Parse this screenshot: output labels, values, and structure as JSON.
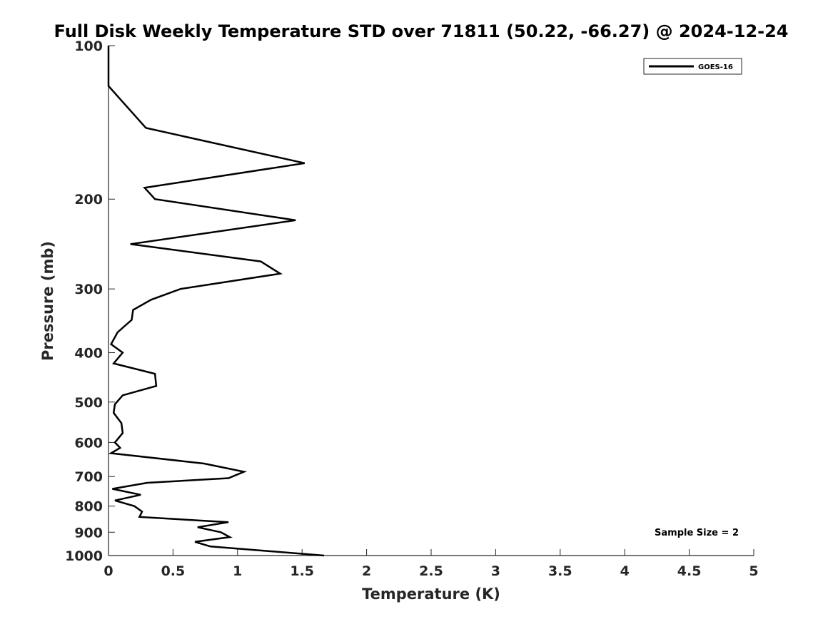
{
  "chart_data": {
    "type": "line",
    "title": "Full Disk Weekly Temperature STD over 71811 (50.22, -66.27) @ 2024-12-24",
    "xlabel": "Temperature (K)",
    "ylabel": "Pressure (mb)",
    "xlim": [
      0,
      5
    ],
    "ylim": [
      100,
      1000
    ],
    "yscale": "log",
    "yreversed": true,
    "xticks": [
      "0",
      "0.5",
      "1",
      "1.5",
      "2",
      "2.5",
      "3",
      "3.5",
      "4",
      "4.5",
      "5"
    ],
    "yticks": [
      "100",
      "200",
      "300",
      "400",
      "500",
      "600",
      "700",
      "800",
      "900",
      "1000"
    ],
    "grid": false,
    "legend_position": "top-right",
    "annotation": "Sample Size = 2",
    "series": [
      {
        "name": "GOES-16",
        "color": "#000000",
        "x": [
          0.0,
          0.0,
          0.29,
          1.52,
          0.28,
          0.36,
          1.45,
          0.17,
          1.18,
          1.33,
          0.56,
          0.33,
          0.19,
          0.18,
          0.07,
          0.02,
          0.11,
          0.04,
          0.36,
          0.37,
          0.11,
          0.05,
          0.04,
          0.1,
          0.11,
          0.05,
          0.09,
          0.02,
          0.74,
          1.05,
          0.93,
          0.3,
          0.03,
          0.25,
          0.05,
          0.2,
          0.26,
          0.24,
          0.93,
          0.69,
          0.87,
          0.94,
          0.67,
          0.79,
          1.67
        ],
        "y": [
          100,
          120,
          145,
          170,
          190,
          200,
          220,
          245,
          265,
          280,
          300,
          315,
          330,
          345,
          365,
          385,
          400,
          420,
          440,
          465,
          485,
          505,
          525,
          550,
          575,
          600,
          615,
          630,
          660,
          685,
          705,
          720,
          740,
          760,
          780,
          800,
          820,
          840,
          860,
          880,
          900,
          920,
          940,
          960,
          1000
        ]
      }
    ]
  }
}
